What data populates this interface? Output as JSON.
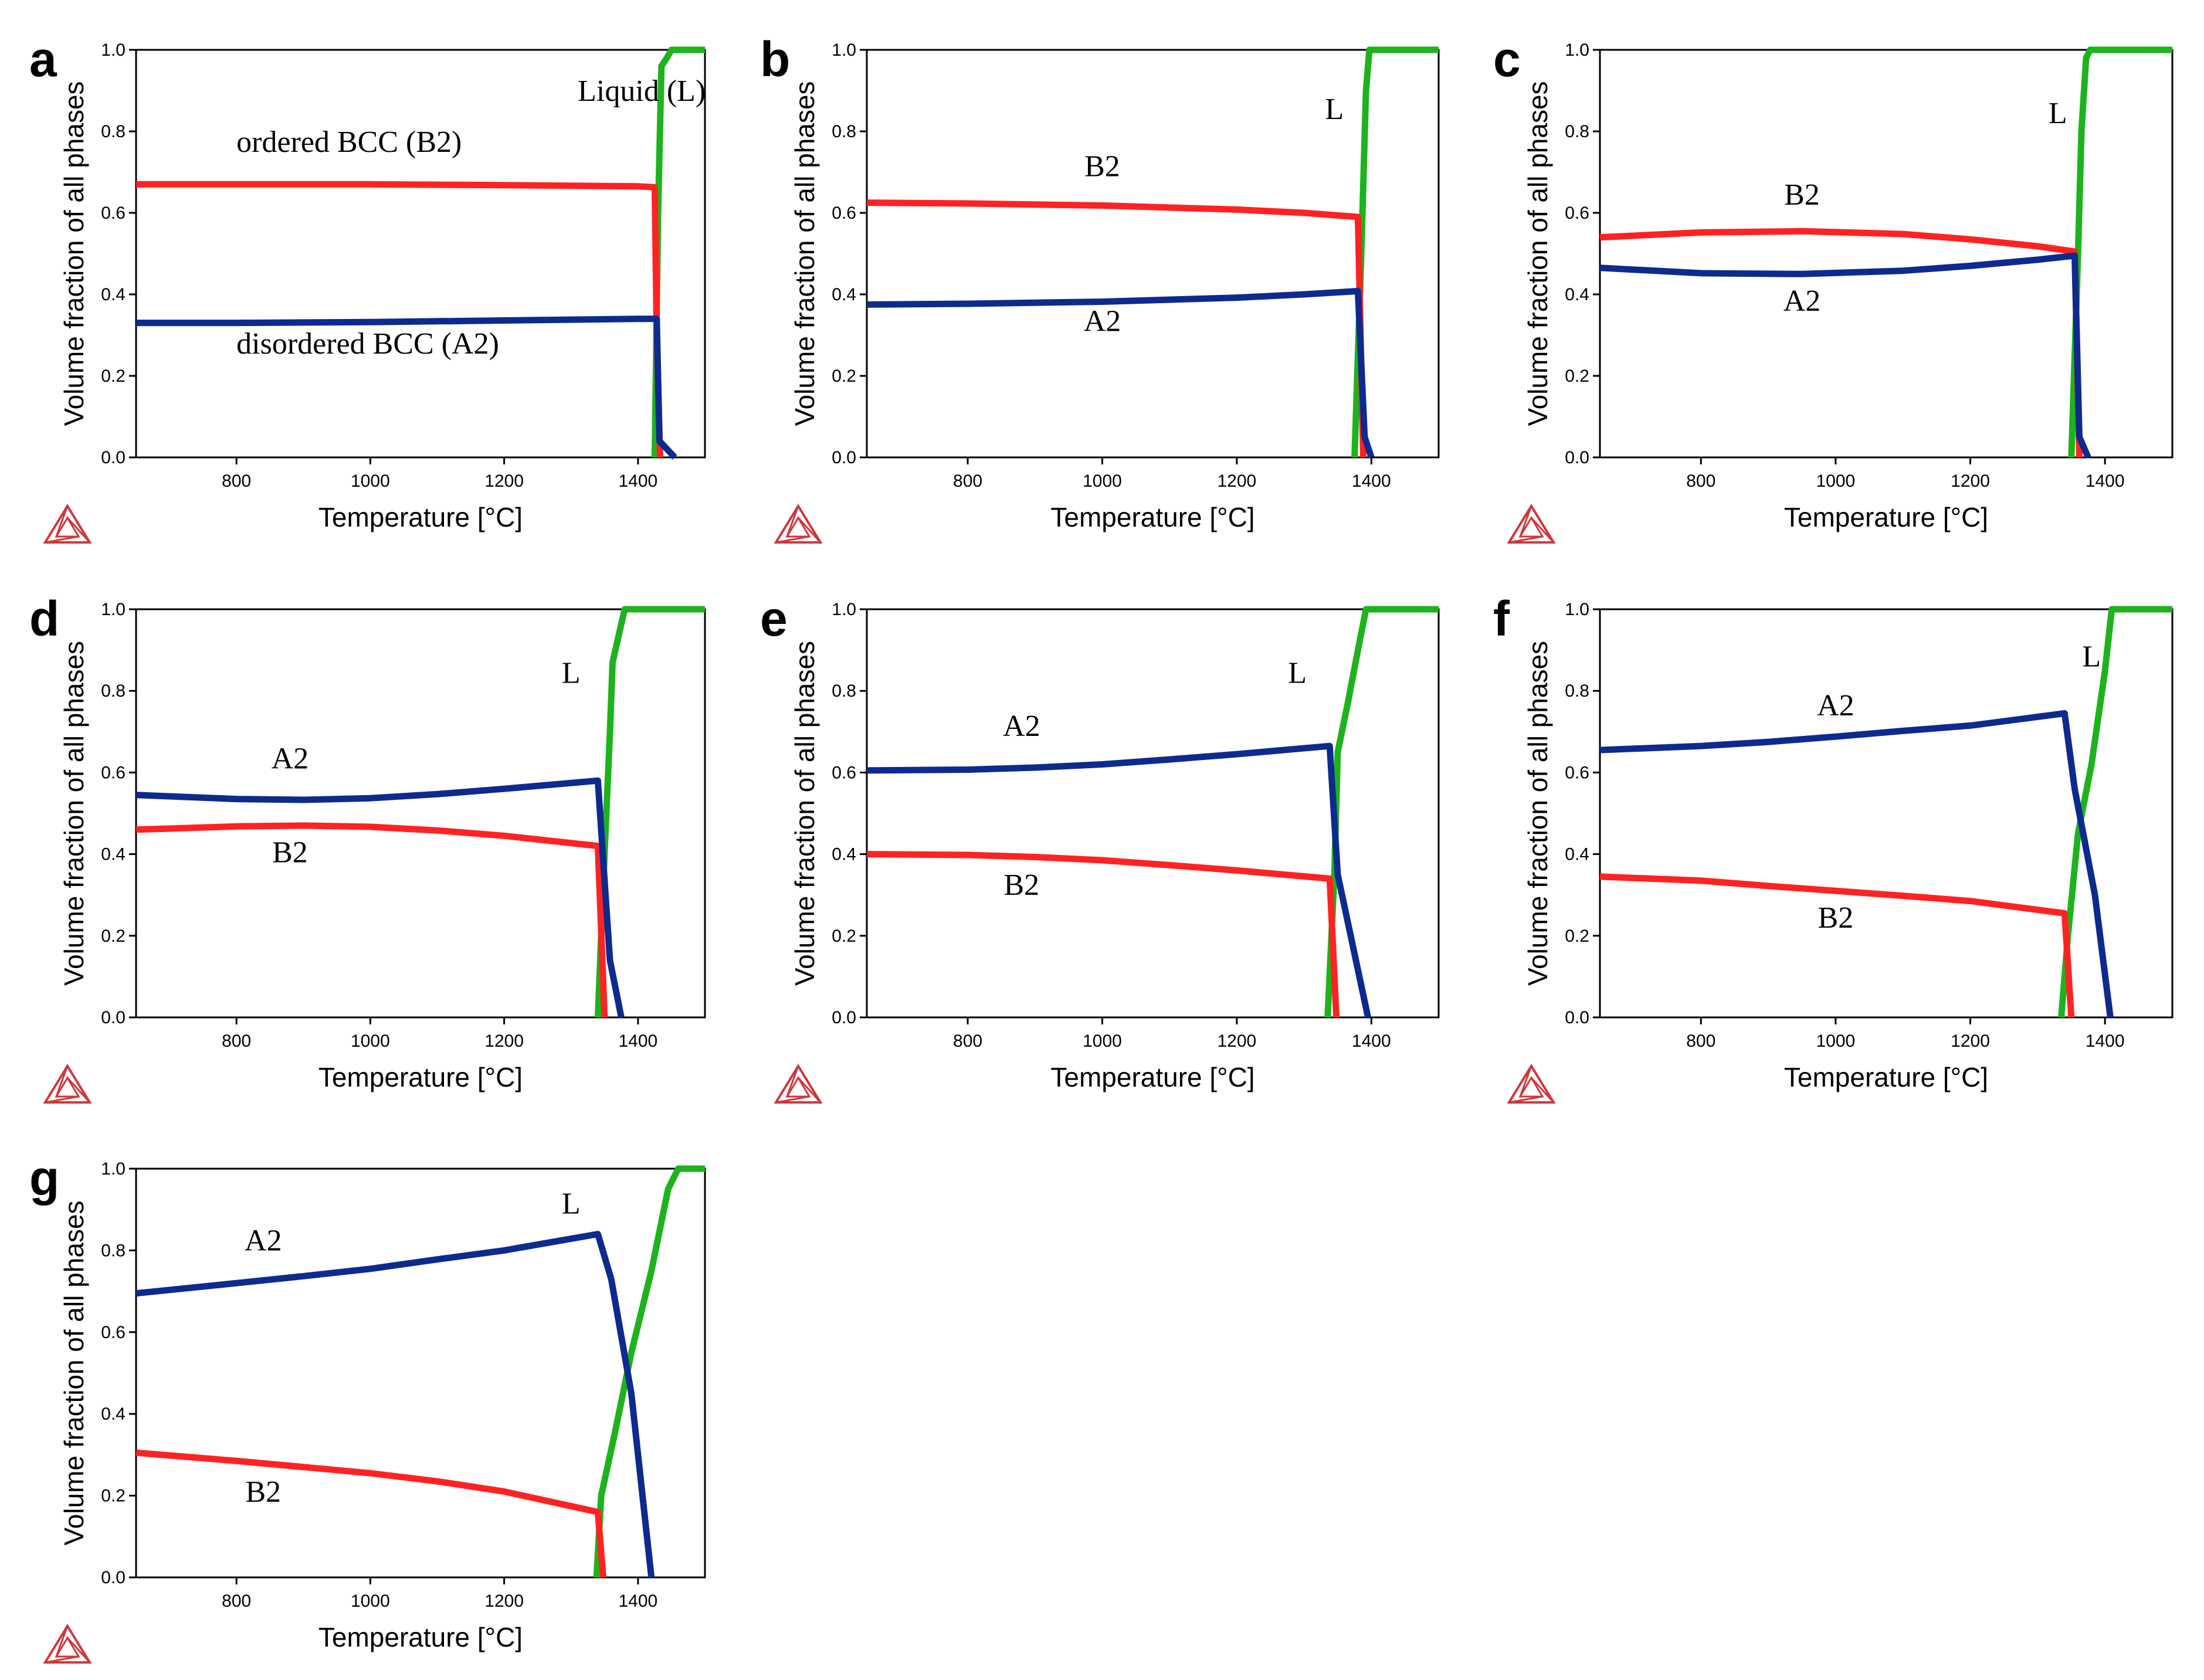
{
  "figure": {
    "axis_labels": {
      "x": "Temperature [°C]",
      "y": "Volume fraction of all phases"
    },
    "colors": {
      "liquid": "#1db31d",
      "b2": "#ff2222",
      "a2": "#0d2a8f",
      "logo": "#d1353b",
      "axis": "#000000"
    }
  },
  "chart_data": [
    {
      "panel": "a",
      "type": "line",
      "xlabel": "Temperature [°C]",
      "ylabel": "Volume fraction of all phases",
      "xlim": [
        650,
        1500
      ],
      "ylim": [
        0,
        1.0
      ],
      "xticks": [
        "800",
        "1000",
        "1200",
        "1400"
      ],
      "yticks": [
        "0.0",
        "0.2",
        "0.4",
        "0.6",
        "0.8",
        "1.0"
      ],
      "series": [
        {
          "name": "Liquid (L)",
          "color": "#1db31d",
          "x": [
            1425,
            1430,
            1435,
            1443,
            1450,
            1500
          ],
          "y": [
            0.0,
            0.6,
            0.96,
            0.98,
            1.0,
            1.0
          ]
        },
        {
          "name": "ordered BCC (B2)",
          "color": "#ff2222",
          "x": [
            650,
            800,
            1000,
            1200,
            1400,
            1425,
            1428,
            1433
          ],
          "y": [
            0.67,
            0.67,
            0.67,
            0.668,
            0.665,
            0.663,
            0.3,
            0.0
          ]
        },
        {
          "name": "disordered BCC (A2)",
          "color": "#0d2a8f",
          "x": [
            650,
            800,
            1000,
            1200,
            1400,
            1428,
            1432,
            1455
          ],
          "y": [
            0.33,
            0.33,
            0.332,
            0.336,
            0.34,
            0.34,
            0.04,
            0.0
          ]
        }
      ],
      "annotations": [
        {
          "text": "Liquid (L)",
          "x": 1310,
          "y": 0.875
        },
        {
          "text": "ordered BCC (B2)",
          "x": 800,
          "y": 0.75
        },
        {
          "text": "disordered BCC (A2)",
          "x": 800,
          "y": 0.255
        }
      ]
    },
    {
      "panel": "b",
      "type": "line",
      "xlabel": "Temperature [°C]",
      "ylabel": "Volume fraction of all phases",
      "xlim": [
        650,
        1500
      ],
      "ylim": [
        0,
        1.0
      ],
      "xticks": [
        "800",
        "1000",
        "1200",
        "1400"
      ],
      "yticks": [
        "0.0",
        "0.2",
        "0.4",
        "0.6",
        "0.8",
        "1.0"
      ],
      "series": [
        {
          "name": "L",
          "color": "#1db31d",
          "x": [
            1375,
            1385,
            1392,
            1397,
            1500
          ],
          "y": [
            0.0,
            0.5,
            0.9,
            1.0,
            1.0
          ]
        },
        {
          "name": "B2",
          "color": "#ff2222",
          "x": [
            650,
            800,
            1000,
            1200,
            1300,
            1380,
            1388
          ],
          "y": [
            0.625,
            0.623,
            0.618,
            0.608,
            0.6,
            0.59,
            0.0
          ]
        },
        {
          "name": "A2",
          "color": "#0d2a8f",
          "x": [
            650,
            800,
            1000,
            1200,
            1300,
            1380,
            1390,
            1400
          ],
          "y": [
            0.375,
            0.377,
            0.382,
            0.392,
            0.4,
            0.408,
            0.05,
            0.0
          ]
        }
      ],
      "annotations": [
        {
          "text": "L",
          "x": 1345,
          "y": 0.83
        },
        {
          "text": "B2",
          "x": 1000,
          "y": 0.69
        },
        {
          "text": "A2",
          "x": 1000,
          "y": 0.31
        }
      ]
    },
    {
      "panel": "c",
      "type": "line",
      "xlabel": "Temperature [°C]",
      "ylabel": "Volume fraction of all phases",
      "xlim": [
        650,
        1500
      ],
      "ylim": [
        0,
        1.0
      ],
      "xticks": [
        "800",
        "1000",
        "1200",
        "1400"
      ],
      "yticks": [
        "0.0",
        "0.2",
        "0.4",
        "0.6",
        "0.8",
        "1.0"
      ],
      "series": [
        {
          "name": "L",
          "color": "#1db31d",
          "x": [
            1350,
            1360,
            1365,
            1372,
            1378,
            1500
          ],
          "y": [
            0.0,
            0.5,
            0.8,
            0.98,
            1.0,
            1.0
          ]
        },
        {
          "name": "B2",
          "color": "#ff2222",
          "x": [
            650,
            800,
            950,
            1100,
            1200,
            1300,
            1355,
            1362
          ],
          "y": [
            0.54,
            0.552,
            0.555,
            0.548,
            0.535,
            0.518,
            0.505,
            0.0
          ]
        },
        {
          "name": "A2",
          "color": "#0d2a8f",
          "x": [
            650,
            800,
            950,
            1100,
            1200,
            1300,
            1355,
            1362,
            1375
          ],
          "y": [
            0.465,
            0.452,
            0.45,
            0.458,
            0.47,
            0.485,
            0.495,
            0.05,
            0.0
          ]
        }
      ],
      "annotations": [
        {
          "text": "L",
          "x": 1330,
          "y": 0.82
        },
        {
          "text": "B2",
          "x": 950,
          "y": 0.62
        },
        {
          "text": "A2",
          "x": 950,
          "y": 0.36
        }
      ]
    },
    {
      "panel": "d",
      "type": "line",
      "xlabel": "Temperature [°C]",
      "ylabel": "Volume fraction of all phases",
      "xlim": [
        650,
        1500
      ],
      "ylim": [
        0,
        1.0
      ],
      "xticks": [
        "800",
        "1000",
        "1200",
        "1400"
      ],
      "yticks": [
        "0.0",
        "0.2",
        "0.4",
        "0.6",
        "0.8",
        "1.0"
      ],
      "series": [
        {
          "name": "L",
          "color": "#1db31d",
          "x": [
            1340,
            1350,
            1358,
            1362,
            1380,
            1500
          ],
          "y": [
            0.0,
            0.4,
            0.7,
            0.87,
            1.0,
            1.0
          ]
        },
        {
          "name": "B2",
          "color": "#ff2222",
          "x": [
            650,
            800,
            900,
            1000,
            1100,
            1200,
            1340,
            1350
          ],
          "y": [
            0.46,
            0.468,
            0.47,
            0.467,
            0.458,
            0.445,
            0.42,
            0.0
          ]
        },
        {
          "name": "A2",
          "color": "#0d2a8f",
          "x": [
            650,
            800,
            900,
            1000,
            1100,
            1200,
            1340,
            1358,
            1375
          ],
          "y": [
            0.545,
            0.535,
            0.533,
            0.537,
            0.547,
            0.56,
            0.58,
            0.14,
            0.0
          ]
        }
      ],
      "annotations": [
        {
          "text": "L",
          "x": 1300,
          "y": 0.82
        },
        {
          "text": "A2",
          "x": 880,
          "y": 0.61
        },
        {
          "text": "B2",
          "x": 880,
          "y": 0.38
        }
      ]
    },
    {
      "panel": "e",
      "type": "line",
      "xlabel": "Temperature [°C]",
      "ylabel": "Volume fraction of all phases",
      "xlim": [
        650,
        1500
      ],
      "ylim": [
        0,
        1.0
      ],
      "xticks": [
        "800",
        "1000",
        "1200",
        "1400"
      ],
      "yticks": [
        "0.0",
        "0.2",
        "0.4",
        "0.6",
        "0.8",
        "1.0"
      ],
      "series": [
        {
          "name": "L",
          "color": "#1db31d",
          "x": [
            1335,
            1345,
            1350,
            1365,
            1380,
            1392,
            1500
          ],
          "y": [
            0.0,
            0.35,
            0.65,
            0.77,
            0.9,
            1.0,
            1.0
          ]
        },
        {
          "name": "B2",
          "color": "#ff2222",
          "x": [
            650,
            800,
            900,
            1000,
            1100,
            1200,
            1338,
            1348
          ],
          "y": [
            0.4,
            0.398,
            0.393,
            0.385,
            0.373,
            0.36,
            0.34,
            0.0
          ]
        },
        {
          "name": "A2",
          "color": "#0d2a8f",
          "x": [
            650,
            800,
            900,
            1000,
            1100,
            1200,
            1338,
            1350,
            1395
          ],
          "y": [
            0.605,
            0.607,
            0.612,
            0.62,
            0.632,
            0.645,
            0.665,
            0.35,
            0.0
          ]
        }
      ],
      "annotations": [
        {
          "text": "L",
          "x": 1290,
          "y": 0.82
        },
        {
          "text": "A2",
          "x": 880,
          "y": 0.69
        },
        {
          "text": "B2",
          "x": 880,
          "y": 0.3
        }
      ]
    },
    {
      "panel": "f",
      "type": "line",
      "xlabel": "Temperature [°C]",
      "ylabel": "Volume fraction of all phases",
      "xlim": [
        650,
        1500
      ],
      "ylim": [
        0,
        1.0
      ],
      "xticks": [
        "800",
        "1000",
        "1200",
        "1400"
      ],
      "yticks": [
        "0.0",
        "0.2",
        "0.4",
        "0.6",
        "0.8",
        "1.0"
      ],
      "series": [
        {
          "name": "L",
          "color": "#1db31d",
          "x": [
            1335,
            1345,
            1360,
            1380,
            1400,
            1410,
            1500
          ],
          "y": [
            0.0,
            0.2,
            0.45,
            0.62,
            0.85,
            1.0,
            1.0
          ]
        },
        {
          "name": "B2",
          "color": "#ff2222",
          "x": [
            650,
            800,
            900,
            1000,
            1100,
            1200,
            1340,
            1350
          ],
          "y": [
            0.345,
            0.335,
            0.322,
            0.31,
            0.298,
            0.285,
            0.255,
            0.0
          ]
        },
        {
          "name": "A2",
          "color": "#0d2a8f",
          "x": [
            650,
            800,
            900,
            1000,
            1100,
            1200,
            1340,
            1355,
            1385,
            1408
          ],
          "y": [
            0.655,
            0.665,
            0.675,
            0.688,
            0.702,
            0.715,
            0.745,
            0.56,
            0.3,
            0.0
          ]
        }
      ],
      "annotations": [
        {
          "text": "L",
          "x": 1380,
          "y": 0.86
        },
        {
          "text": "A2",
          "x": 1000,
          "y": 0.74
        },
        {
          "text": "B2",
          "x": 1000,
          "y": 0.22
        }
      ]
    },
    {
      "panel": "g",
      "type": "line",
      "xlabel": "Temperature [°C]",
      "ylabel": "Volume fraction of all phases",
      "xlim": [
        650,
        1500
      ],
      "ylim": [
        0,
        1.0
      ],
      "xticks": [
        "800",
        "1000",
        "1200",
        "1400"
      ],
      "yticks": [
        "0.0",
        "0.2",
        "0.4",
        "0.6",
        "0.8",
        "1.0"
      ],
      "series": [
        {
          "name": "L",
          "color": "#1db31d",
          "x": [
            1338,
            1345,
            1365,
            1390,
            1420,
            1445,
            1460,
            1500
          ],
          "y": [
            0.0,
            0.2,
            0.35,
            0.55,
            0.75,
            0.95,
            1.0,
            1.0
          ]
        },
        {
          "name": "B2",
          "color": "#ff2222",
          "x": [
            650,
            800,
            900,
            1000,
            1100,
            1200,
            1340,
            1348
          ],
          "y": [
            0.305,
            0.285,
            0.27,
            0.255,
            0.235,
            0.21,
            0.16,
            0.0
          ]
        },
        {
          "name": "A2",
          "color": "#0d2a8f",
          "x": [
            650,
            800,
            900,
            1000,
            1100,
            1200,
            1340,
            1360,
            1390,
            1420
          ],
          "y": [
            0.695,
            0.72,
            0.737,
            0.755,
            0.778,
            0.8,
            0.84,
            0.73,
            0.45,
            0.0
          ]
        }
      ],
      "annotations": [
        {
          "text": "L",
          "x": 1300,
          "y": 0.89
        },
        {
          "text": "A2",
          "x": 840,
          "y": 0.8
        },
        {
          "text": "B2",
          "x": 840,
          "y": 0.185
        }
      ]
    }
  ]
}
